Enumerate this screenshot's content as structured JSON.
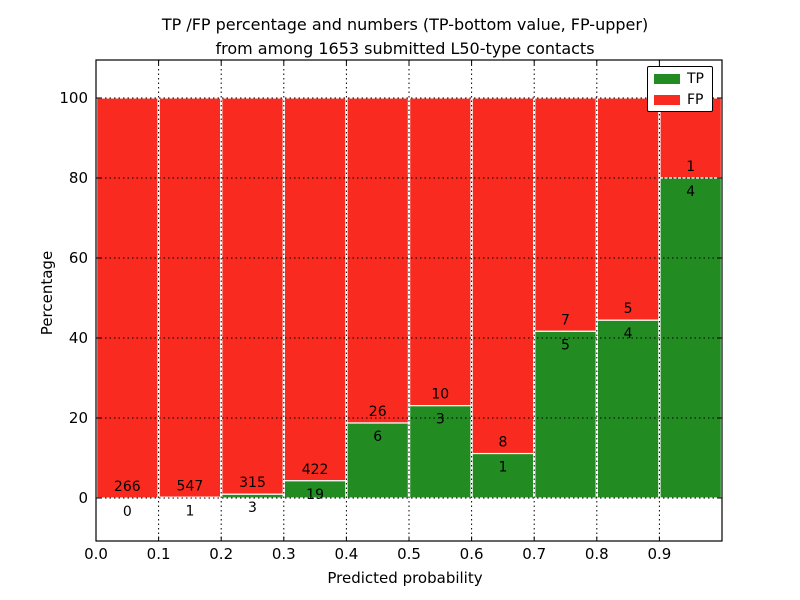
{
  "title": {
    "line1": "TP /FP percentage and numbers (TP-bottom value, FP-upper)",
    "line2": "from among 1653 submitted L50-type contacts"
  },
  "axes": {
    "xlabel": "Predicted probability",
    "ylabel": "Percentage"
  },
  "legend": {
    "entries": [
      {
        "label": "TP",
        "color": "#228b22"
      },
      {
        "label": "FP",
        "color": "#f92a1f"
      }
    ]
  },
  "chart_data": {
    "type": "bar",
    "stacked": true,
    "title": "TP /FP percentage and numbers (TP-bottom value, FP-upper) from among 1653 submitted L50-type contacts",
    "xlabel": "Predicted probability",
    "ylabel": "Percentage",
    "total_contacts": 1653,
    "bin_edges": [
      0.0,
      0.1,
      0.2,
      0.3,
      0.4,
      0.5,
      0.6,
      0.7,
      0.8,
      0.9,
      1.0
    ],
    "x_tick_values": [
      0.0,
      0.1,
      0.2,
      0.3,
      0.4,
      0.5,
      0.6,
      0.7,
      0.8,
      0.9
    ],
    "x_tick_labels": [
      "0.0",
      "0.1",
      "0.2",
      "0.3",
      "0.4",
      "0.5",
      "0.6",
      "0.7",
      "0.8",
      "0.9"
    ],
    "y_tick_values": [
      0,
      20,
      40,
      60,
      80,
      100
    ],
    "y_tick_labels": [
      "0",
      "20",
      "40",
      "60",
      "80",
      "100"
    ],
    "xlim": [
      0,
      1
    ],
    "ylim": [
      -10.75,
      109.5
    ],
    "grid": true,
    "grid_style": "dotted-black",
    "bar_edge_color": "#ffffff",
    "series": [
      {
        "name": "TP",
        "color": "#228b22",
        "counts": [
          0,
          1,
          3,
          19,
          6,
          3,
          1,
          5,
          4,
          4
        ]
      },
      {
        "name": "FP",
        "color": "#f92a1f",
        "counts": [
          266,
          547,
          315,
          422,
          26,
          10,
          8,
          7,
          5,
          1
        ]
      }
    ],
    "tp_percentages": [
      0.0,
      0.18,
      0.94,
      4.31,
      18.75,
      23.08,
      11.11,
      41.67,
      44.44,
      80.0
    ],
    "legend_position": "upper-right"
  }
}
